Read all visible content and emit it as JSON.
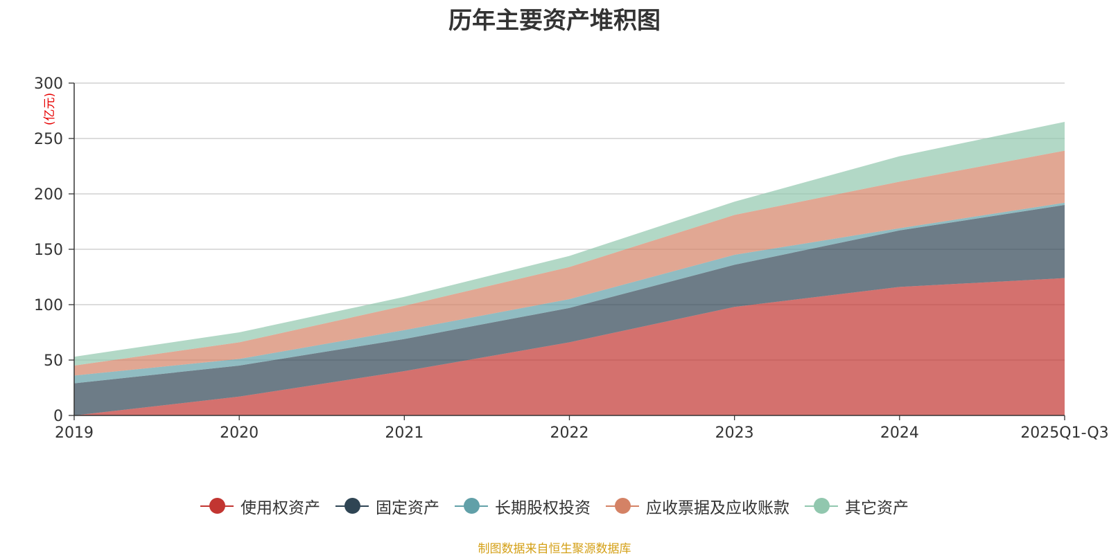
{
  "chart_data": {
    "type": "area",
    "stacked": true,
    "title": "历年主要资产堆积图",
    "unit_label": "(亿元)",
    "categories": [
      "2019",
      "2020",
      "2021",
      "2022",
      "2023",
      "2024",
      "2025Q1-Q3"
    ],
    "ylim": [
      0,
      300
    ],
    "yticks": [
      0,
      50,
      100,
      150,
      200,
      250,
      300
    ],
    "grid": true,
    "legend_position": "bottom",
    "series": [
      {
        "name": "使用权资产",
        "color": "#c23531",
        "values": [
          0,
          17,
          40,
          66,
          98,
          116,
          124
        ]
      },
      {
        "name": "固定资产",
        "color": "#2f4554",
        "values": [
          29,
          28,
          29,
          31,
          38,
          51,
          66
        ]
      },
      {
        "name": "长期股权投资",
        "color": "#61a0a8",
        "values": [
          7,
          6,
          8,
          8,
          9,
          2,
          2
        ]
      },
      {
        "name": "应收票据及应收账款",
        "color": "#d48265",
        "values": [
          9,
          15,
          22,
          29,
          36,
          42,
          47
        ]
      },
      {
        "name": "其它资产",
        "color": "#91c7ae",
        "values": [
          8,
          9,
          8,
          10,
          12,
          23,
          26
        ]
      }
    ]
  },
  "source_text": "制图数据来自恒生聚源数据库"
}
